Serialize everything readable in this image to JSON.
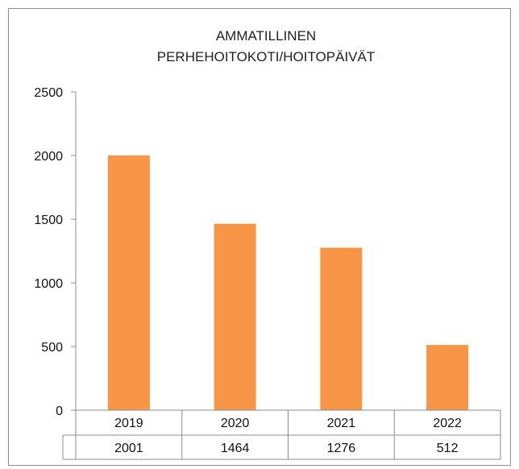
{
  "chart_data": {
    "type": "bar",
    "title_lines": [
      "AMMATILLINEN",
      "PERHEHOITOKOTI/HOITOPÄIVÄT"
    ],
    "categories": [
      "2019",
      "2020",
      "2021",
      "2022"
    ],
    "values": [
      2001,
      1464,
      1276,
      512
    ],
    "table_values": [
      "2001",
      "1464",
      "1276",
      "512"
    ],
    "ylim": [
      0,
      2500
    ],
    "yticks": [
      "0",
      "500",
      "1000",
      "1500",
      "2000",
      "2500"
    ],
    "grid": false,
    "legend": "none",
    "bar_color": "#F79646"
  }
}
